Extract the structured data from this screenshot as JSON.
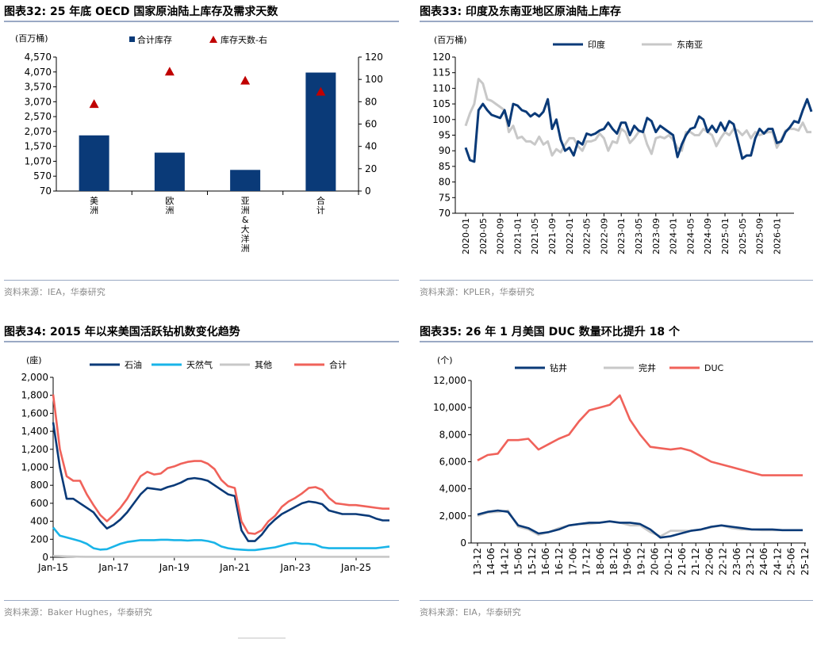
{
  "colors": {
    "navy": "#0a3a78",
    "gray": "#c8c8c8",
    "red": "#f0625a",
    "cyan": "#19b4e8",
    "dark_red": "#c00000",
    "rule": "#9aa9c4",
    "source": "#8c8c8c"
  },
  "panels": [
    {
      "title": "图表32:  25 年底 OECD 国家原油陆上库存及需求天数",
      "source": "资料来源：IEA，华泰研究"
    },
    {
      "title": "图表33:  印度及东南亚地区原油陆上库存",
      "source": "资料来源：KPLER，华泰研究"
    },
    {
      "title": "图表34:  2015 年以来美国活跃钻机数变化趋势",
      "source": "资料来源：Baker Hughes，华泰研究"
    },
    {
      "title": "图表35:  26 年 1 月美国 DUC 数量环比提升 18 个",
      "source": "资料来源：EIA，华泰研究"
    }
  ],
  "chart_data": [
    {
      "type": "bar",
      "title": "25 年底 OECD 国家原油陆上库存及需求天数",
      "unit": "(百万桶)",
      "categories": [
        [
          "美",
          "洲"
        ],
        [
          "欧",
          "洲"
        ],
        [
          "亚",
          "洲",
          "&",
          "大",
          "洋",
          "洲"
        ],
        [
          "合",
          "计"
        ]
      ],
      "series": [
        {
          "name": "合计库存",
          "kind": "bar",
          "axis": "left",
          "values": [
            1940,
            1360,
            780,
            4050
          ]
        },
        {
          "name": "库存天数-右",
          "kind": "marker",
          "axis": "right",
          "values": [
            78,
            107,
            99,
            89
          ]
        }
      ],
      "yticks_left": [
        "4,570",
        "4,070",
        "3,570",
        "3,070",
        "2,570",
        "2,070",
        "1,570",
        "1,070",
        "570",
        "70"
      ],
      "ylim_left": [
        70,
        4570
      ],
      "yticks_right": [
        "120",
        "100",
        "80",
        "60",
        "40",
        "20",
        "0"
      ],
      "ylim_right": [
        0,
        120
      ]
    },
    {
      "type": "line",
      "title": "印度及东南亚地区原油陆上库存",
      "unit": "(百万桶)",
      "ylim": [
        70,
        120
      ],
      "yticks": [
        "120",
        "115",
        "110",
        "105",
        "100",
        "95",
        "90",
        "85",
        "80",
        "75",
        "70"
      ],
      "xticks": [
        "2020-01",
        "2020-05",
        "2020-09",
        "2021-01",
        "2021-05",
        "2021-09",
        "2022-01",
        "2022-05",
        "2022-09",
        "2023-01",
        "2023-05",
        "2023-09",
        "2024-01",
        "2024-05",
        "2024-09",
        "2025-01",
        "2025-05",
        "2025-09",
        "2026-01"
      ],
      "series": [
        {
          "name": "印度",
          "values": [
            91,
            87,
            86.5,
            103,
            105,
            103,
            101.5,
            101,
            100.5,
            103,
            98,
            105,
            104.5,
            103,
            102.5,
            101,
            102,
            101,
            102.5,
            106.5,
            97,
            100,
            93.5,
            90,
            91,
            88.5,
            93,
            92,
            95.5,
            95,
            95.5,
            96.5,
            97,
            99,
            97,
            95.5,
            99,
            99,
            95,
            98,
            96.5,
            96,
            100.5,
            99.5,
            96,
            98,
            97,
            96,
            95,
            88,
            92,
            95,
            97,
            97.5,
            101,
            100,
            96,
            98,
            96,
            99,
            96.5,
            99.5,
            98.5,
            93,
            87.5,
            88.5,
            88.5,
            94,
            97,
            95.5,
            97,
            97,
            92.5,
            93,
            96,
            97.5,
            99.5,
            99,
            103,
            106.5,
            102.5
          ]
        },
        {
          "name": "东南亚",
          "values": [
            98,
            102,
            105,
            113,
            111.5,
            106.5,
            106,
            105,
            104,
            103,
            96,
            98,
            94,
            94.5,
            93,
            93,
            92,
            94.5,
            92,
            93,
            88.5,
            90.5,
            89.5,
            92,
            94,
            94,
            91.5,
            90,
            93,
            93,
            93.5,
            95.5,
            94,
            90,
            93,
            92.5,
            97,
            96,
            92.5,
            94,
            96,
            96.5,
            92,
            89,
            94,
            94.5,
            94,
            95,
            93.5,
            91,
            90,
            96,
            96,
            95,
            95,
            97,
            96,
            95,
            91.5,
            94,
            96,
            95,
            97,
            96.5,
            95,
            96.5,
            94,
            96,
            95,
            95.5,
            96,
            96,
            91,
            93.5,
            96.5,
            97,
            97,
            96.5,
            99,
            96,
            96
          ]
        }
      ]
    },
    {
      "type": "line",
      "title": "2015 年以来美国活跃钻机数变化趋势",
      "unit": "(座)",
      "ylim": [
        0,
        2000
      ],
      "yticks": [
        "2,000",
        "1,800",
        "1,600",
        "1,400",
        "1,200",
        "1,000",
        "800",
        "600",
        "400",
        "200",
        "0"
      ],
      "xticks": [
        "Jan-15",
        "Jan-17",
        "Jan-19",
        "Jan-21",
        "Jan-23",
        "Jan-25"
      ],
      "x_start_year": 2015.0,
      "x_end_year": 2026.1,
      "series": [
        {
          "name": "石油",
          "values": [
            1500,
            1000,
            650,
            650,
            600,
            550,
            500,
            400,
            320,
            360,
            420,
            500,
            600,
            700,
            770,
            760,
            750,
            780,
            800,
            830,
            870,
            880,
            870,
            850,
            800,
            750,
            700,
            680,
            300,
            180,
            180,
            250,
            350,
            420,
            480,
            520,
            560,
            600,
            620,
            610,
            590,
            520,
            500,
            480,
            480,
            480,
            470,
            460,
            430,
            410,
            410
          ]
        },
        {
          "name": "天然气",
          "values": [
            330,
            240,
            220,
            200,
            180,
            150,
            100,
            85,
            90,
            120,
            150,
            170,
            180,
            190,
            190,
            190,
            195,
            195,
            190,
            190,
            185,
            190,
            190,
            180,
            160,
            120,
            100,
            90,
            85,
            80,
            80,
            90,
            100,
            110,
            130,
            150,
            160,
            150,
            150,
            140,
            110,
            100,
            100,
            100,
            100,
            100,
            100,
            100,
            100,
            110,
            120
          ]
        },
        {
          "name": "其他",
          "values": [
            15,
            12,
            10,
            8,
            6,
            5,
            5,
            5,
            5,
            5,
            5,
            5,
            5,
            5,
            5,
            5,
            5,
            5,
            5,
            5,
            5,
            5,
            5,
            5,
            5,
            5,
            5,
            5,
            5,
            5,
            5,
            5,
            5,
            5,
            5,
            5,
            5,
            5,
            5,
            5,
            5,
            5,
            5,
            5,
            5,
            5,
            5,
            5,
            5,
            5,
            5
          ]
        },
        {
          "name": "合计",
          "values": [
            1810,
            1200,
            900,
            850,
            850,
            700,
            580,
            470,
            400,
            470,
            550,
            650,
            780,
            900,
            950,
            920,
            930,
            990,
            1010,
            1040,
            1060,
            1070,
            1070,
            1040,
            980,
            860,
            790,
            770,
            400,
            270,
            260,
            300,
            400,
            460,
            560,
            620,
            660,
            710,
            770,
            780,
            750,
            660,
            600,
            590,
            580,
            580,
            570,
            560,
            550,
            540,
            540
          ]
        }
      ]
    },
    {
      "type": "line",
      "title": "26 年 1 月美国 DUC 数量环比提升 18 个",
      "unit": "(个)",
      "ylim": [
        0,
        12000
      ],
      "yticks": [
        "12,000",
        "10,000",
        "8,000",
        "6,000",
        "4,000",
        "2,000",
        "0"
      ],
      "xticks": [
        "13-12",
        "14-06",
        "14-12",
        "15-06",
        "15-12",
        "16-06",
        "16-12",
        "17-06",
        "17-12",
        "18-06",
        "18-12",
        "19-06",
        "19-12",
        "20-06",
        "20-12",
        "21-06",
        "21-12",
        "22-06",
        "22-12",
        "23-06",
        "23-12",
        "24-06",
        "24-12",
        "25-06",
        "25-12"
      ],
      "series": [
        {
          "name": "钻井",
          "values": [
            2100,
            2300,
            2400,
            2300,
            1300,
            1100,
            700,
            800,
            1000,
            1300,
            1400,
            1500,
            1500,
            1600,
            1500,
            1500,
            1400,
            1000,
            400,
            500,
            700,
            900,
            1000,
            1200,
            1300,
            1200,
            1100,
            1000,
            1000,
            1000,
            950,
            950,
            950
          ]
        },
        {
          "name": "完井",
          "values": [
            2000,
            2250,
            2300,
            2400,
            1200,
            1000,
            600,
            800,
            1100,
            1300,
            1400,
            1400,
            1500,
            1600,
            1500,
            1300,
            1300,
            800,
            500,
            900,
            900,
            900,
            1000,
            1150,
            1300,
            1100,
            1000,
            1000,
            950,
            950,
            950,
            950,
            950
          ]
        },
        {
          "name": "DUC",
          "values": [
            6100,
            6500,
            6600,
            7600,
            7600,
            7700,
            6900,
            7300,
            7700,
            8000,
            9000,
            9800,
            10000,
            10200,
            10900,
            9100,
            8000,
            7100,
            7000,
            6900,
            7000,
            6800,
            6400,
            6000,
            5800,
            5600,
            5400,
            5200,
            5000,
            5000,
            5000,
            5000,
            5000
          ]
        }
      ]
    }
  ]
}
